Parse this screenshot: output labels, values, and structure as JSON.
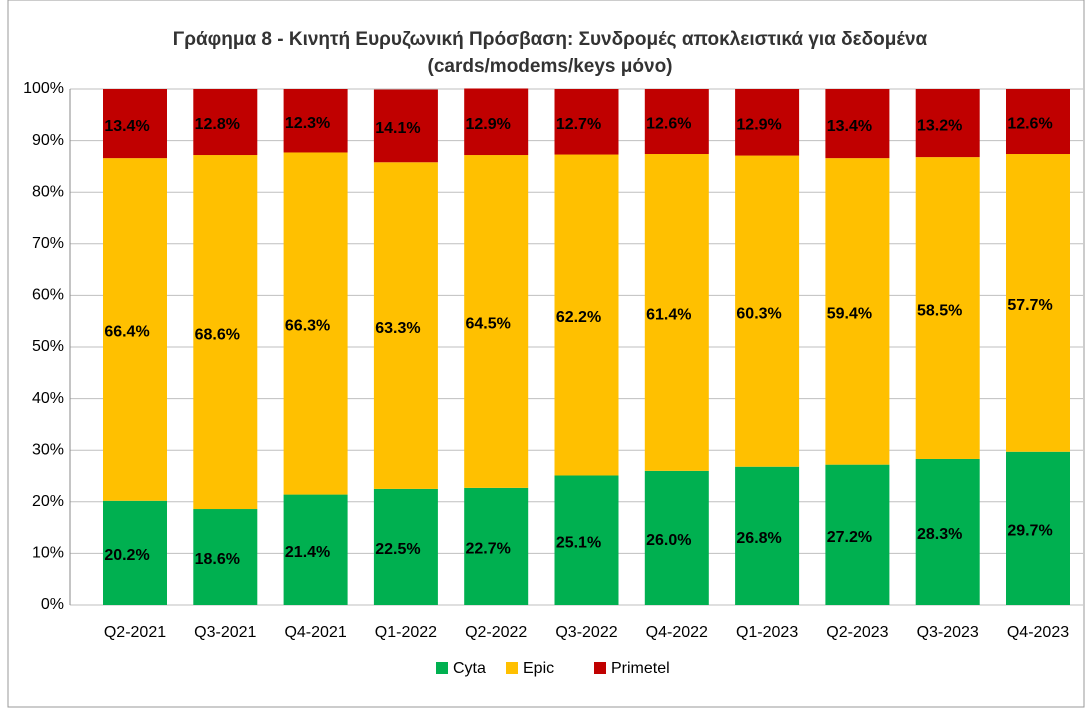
{
  "chart_data": {
    "type": "stacked_bar",
    "title": "Γράφημα 8 - Κινητή Ευρυζωνική Πρόσβαση: Συνδρομές αποκλειστικά για δεδομένα (cards/modems/keys μόνο)",
    "categories": [
      "Q2-2021",
      "Q3-2021",
      "Q4-2021",
      "Q1-2022",
      "Q2-2022",
      "Q3-2022",
      "Q4-2022",
      "Q1-2023",
      "Q2-2023",
      "Q3-2023",
      "Q4-2023"
    ],
    "series": [
      {
        "name": "Cyta",
        "color": "#00b050",
        "values": [
          20.2,
          18.6,
          21.4,
          22.5,
          22.7,
          25.1,
          26.0,
          26.8,
          27.2,
          28.3,
          29.7
        ],
        "value_labels": [
          "20.2%",
          "18.6%",
          "21.4%",
          "22.5%",
          "22.7%",
          "25.1%",
          "26.0%",
          "26.8%",
          "27.2%",
          "28.3%",
          "29.7%"
        ]
      },
      {
        "name": "Epic",
        "color": "#ffc000",
        "values": [
          66.4,
          68.6,
          66.3,
          63.3,
          64.5,
          62.2,
          61.4,
          60.3,
          59.4,
          58.5,
          57.7
        ],
        "value_labels": [
          "66.4%",
          "68.6%",
          "66.3%",
          "63.3%",
          "64.5%",
          "62.2%",
          "61.4%",
          "60.3%",
          "59.4%",
          "58.5%",
          "57.7%"
        ]
      },
      {
        "name": "Primetel",
        "color": "#c00000",
        "values": [
          13.4,
          12.8,
          12.3,
          14.1,
          12.9,
          12.7,
          12.6,
          12.9,
          13.4,
          13.2,
          12.6
        ],
        "value_labels": [
          "13.4%",
          "12.8%",
          "12.3%",
          "14.1%",
          "12.9%",
          "12.7%",
          "12.6%",
          "12.9%",
          "13.4%",
          "13.2%",
          "12.6%"
        ]
      }
    ],
    "ylim": [
      0,
      100
    ],
    "yticks": [
      {
        "value": 0,
        "label": "0%"
      },
      {
        "value": 10,
        "label": "10%"
      },
      {
        "value": 20,
        "label": "20%"
      },
      {
        "value": 30,
        "label": "30%"
      },
      {
        "value": 40,
        "label": "40%"
      },
      {
        "value": 50,
        "label": "50%"
      },
      {
        "value": 60,
        "label": "60%"
      },
      {
        "value": 70,
        "label": "70%"
      },
      {
        "value": 80,
        "label": "80%"
      },
      {
        "value": 90,
        "label": "90%"
      },
      {
        "value": 100,
        "label": "100%"
      }
    ],
    "grid": true,
    "legend": "bottom"
  }
}
